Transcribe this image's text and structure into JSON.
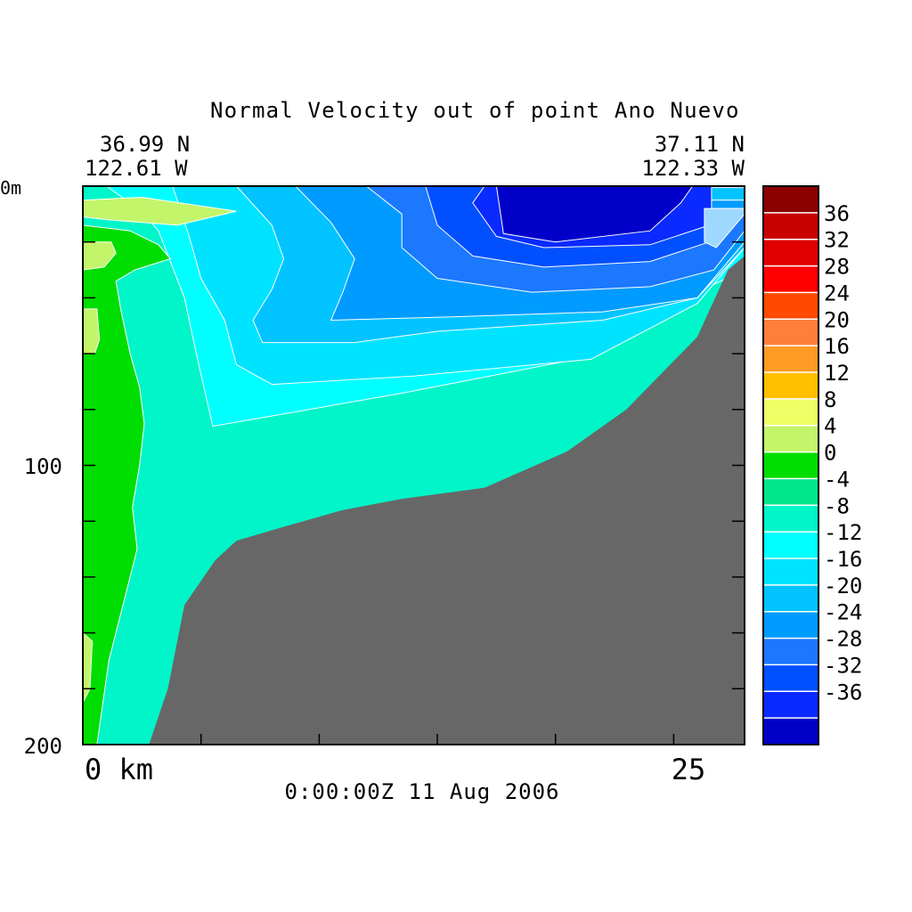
{
  "chart_data": {
    "type": "heatmap",
    "title": "Normal Velocity out of point Ano Nuevo",
    "corner_left": {
      "lat": "36.99 N",
      "lon": "122.61 W"
    },
    "corner_right": {
      "lat": "37.11 N",
      "lon": "122.33 W"
    },
    "timestamp": "0:00:00Z  11 Aug 2006",
    "x_axis": {
      "range": [
        0,
        28
      ],
      "tick_labels": [
        "0 km",
        "25"
      ]
    },
    "y_axis": {
      "range": [
        0,
        200
      ],
      "inverted": true,
      "tick_labels": [
        "0m",
        "100",
        "200"
      ]
    },
    "colorbar": {
      "levels": [
        40,
        36,
        32,
        28,
        24,
        20,
        16,
        12,
        8,
        4,
        0,
        -4,
        -8,
        -12,
        -16,
        -20,
        -24,
        -28,
        -32,
        -36,
        -40
      ],
      "labels": [
        "36",
        "32",
        "28",
        "24",
        "20",
        "16",
        "12",
        "8",
        "4",
        "0",
        "-4",
        "-8",
        "-12",
        "-16",
        "-20",
        "-24",
        "-28",
        "-32",
        "-36"
      ],
      "colors": [
        "#8c0000",
        "#c80000",
        "#e10000",
        "#ff0000",
        "#ff4a00",
        "#ff7e3a",
        "#ff9a24",
        "#ffc000",
        "#eeff66",
        "#c3f56a",
        "#00dd00",
        "#00e68a",
        "#00f5c8",
        "#00ffff",
        "#00e3ff",
        "#00c3ff",
        "#009bff",
        "#1b78ff",
        "#0050ff",
        "#0a2aff",
        "#0000c8"
      ]
    },
    "contour_regions": [
      {
        "value": -6,
        "color": "#00f5c8",
        "points": [
          [
            0,
            0
          ],
          [
            28,
            0
          ],
          [
            28,
            200
          ],
          [
            0,
            200
          ]
        ]
      },
      {
        "value": -10,
        "color": "#00ffff",
        "points": [
          [
            1,
            0
          ],
          [
            28,
            0
          ],
          [
            28,
            30
          ],
          [
            26,
            38
          ],
          [
            21.5,
            61
          ],
          [
            13.6,
            74
          ],
          [
            5.5,
            86
          ],
          [
            4.8,
            60
          ],
          [
            4.3,
            40
          ],
          [
            3.2,
            16
          ],
          [
            2.5,
            9
          ]
        ]
      },
      {
        "value": -14,
        "color": "#00e3ff",
        "points": [
          [
            3.8,
            0
          ],
          [
            28,
            0
          ],
          [
            28,
            22
          ],
          [
            26,
            42
          ],
          [
            21.5,
            62
          ],
          [
            14,
            68
          ],
          [
            8,
            71
          ],
          [
            6.5,
            64
          ],
          [
            6,
            48
          ],
          [
            5,
            33
          ],
          [
            4.5,
            18
          ]
        ]
      },
      {
        "value": -18,
        "color": "#00c3ff",
        "points": [
          [
            6.5,
            0
          ],
          [
            28,
            0
          ],
          [
            28,
            22
          ],
          [
            26,
            40
          ],
          [
            22,
            48
          ],
          [
            15,
            52
          ],
          [
            11.5,
            56
          ],
          [
            7.6,
            56
          ],
          [
            7.2,
            48
          ],
          [
            8,
            37
          ],
          [
            8.5,
            26
          ],
          [
            8,
            14
          ]
        ]
      },
      {
        "value": -22,
        "color": "#009bff",
        "points": [
          [
            9,
            0
          ],
          [
            28,
            0
          ],
          [
            28,
            20
          ],
          [
            26,
            40
          ],
          [
            22,
            45
          ],
          [
            15,
            47
          ],
          [
            10.5,
            48
          ],
          [
            11,
            38
          ],
          [
            11.5,
            26
          ],
          [
            10.5,
            13
          ]
        ]
      },
      {
        "value": -26,
        "color": "#1b78ff",
        "points": [
          [
            12,
            0
          ],
          [
            28,
            0
          ],
          [
            28,
            16
          ],
          [
            26.7,
            30
          ],
          [
            24,
            36
          ],
          [
            19,
            38
          ],
          [
            15,
            33
          ],
          [
            13.5,
            22
          ],
          [
            13.5,
            10
          ]
        ]
      },
      {
        "value": -30,
        "color": "#0050ff",
        "points": [
          [
            14.5,
            0
          ],
          [
            28,
            0
          ],
          [
            28,
            8
          ],
          [
            26.5,
            20
          ],
          [
            24,
            27
          ],
          [
            19.5,
            29
          ],
          [
            16.5,
            25
          ],
          [
            15,
            14
          ]
        ]
      },
      {
        "value": -34,
        "color": "#0a2aff",
        "points": [
          [
            17,
            0
          ],
          [
            28,
            0
          ],
          [
            28,
            5
          ],
          [
            26.5,
            14
          ],
          [
            24,
            21
          ],
          [
            19.5,
            22
          ],
          [
            17.5,
            18
          ],
          [
            16.5,
            6
          ]
        ]
      },
      {
        "value": -38,
        "color": "#0000c8",
        "points": [
          [
            17.5,
            0
          ],
          [
            25.8,
            0
          ],
          [
            25.3,
            6
          ],
          [
            24,
            16
          ],
          [
            20,
            20
          ],
          [
            17.8,
            17
          ]
        ]
      },
      {
        "value": -18,
        "color": "#00c3ff",
        "points": [
          [
            26.6,
            0.5
          ],
          [
            28,
            0.5
          ],
          [
            28,
            5
          ],
          [
            26.6,
            5
          ]
        ]
      },
      {
        "value": -22,
        "color": "#009bff",
        "points": [
          [
            26.6,
            5
          ],
          [
            28,
            5
          ],
          [
            28,
            8
          ],
          [
            26.6,
            8
          ]
        ]
      },
      {
        "value": -16,
        "color": "#9fd8ff",
        "points": [
          [
            26.3,
            8
          ],
          [
            28,
            8
          ],
          [
            28,
            10
          ],
          [
            26.8,
            22
          ],
          [
            26.3,
            20
          ]
        ]
      },
      {
        "value": 2,
        "color": "#00dd00",
        "points": [
          [
            0,
            14
          ],
          [
            2,
            16
          ],
          [
            3.2,
            21
          ],
          [
            3.7,
            26
          ],
          [
            2.2,
            30
          ],
          [
            1.4,
            34
          ],
          [
            1.6,
            44
          ],
          [
            2,
            60
          ],
          [
            2.4,
            72
          ],
          [
            2.6,
            85
          ],
          [
            2.4,
            100
          ],
          [
            2.1,
            115
          ],
          [
            2.3,
            130
          ],
          [
            1.7,
            150
          ],
          [
            1.1,
            170
          ],
          [
            0.6,
            200
          ],
          [
            0,
            200
          ]
        ]
      },
      {
        "value": 6,
        "color": "#c3f56a",
        "points": [
          [
            0,
            5
          ],
          [
            2.5,
            4
          ],
          [
            6.5,
            9
          ],
          [
            4,
            14
          ],
          [
            1,
            12
          ],
          [
            0,
            11
          ]
        ]
      },
      {
        "value": 6,
        "color": "#c3f56a",
        "points": [
          [
            0,
            20
          ],
          [
            1.2,
            20
          ],
          [
            1.4,
            24
          ],
          [
            0.9,
            29
          ],
          [
            0,
            30
          ]
        ]
      },
      {
        "value": 6,
        "color": "#c3f56a",
        "points": [
          [
            0,
            44
          ],
          [
            0.6,
            44
          ],
          [
            0.7,
            55
          ],
          [
            0.5,
            60
          ],
          [
            0,
            60
          ]
        ]
      },
      {
        "value": 6,
        "color": "#c3f56a",
        "points": [
          [
            0,
            160
          ],
          [
            0.4,
            163
          ],
          [
            0.3,
            180
          ],
          [
            0,
            185
          ]
        ]
      }
    ],
    "bathymetry_color": "#676767",
    "bathymetry": [
      [
        2.8,
        200
      ],
      [
        3.6,
        180
      ],
      [
        4.3,
        150
      ],
      [
        5.6,
        134
      ],
      [
        6.5,
        127
      ],
      [
        8.5,
        122
      ],
      [
        11,
        116
      ],
      [
        13.5,
        112
      ],
      [
        17,
        108
      ],
      [
        20.5,
        95
      ],
      [
        23,
        80
      ],
      [
        26,
        54
      ],
      [
        27.3,
        30
      ],
      [
        28,
        25
      ],
      [
        28,
        200
      ]
    ]
  }
}
